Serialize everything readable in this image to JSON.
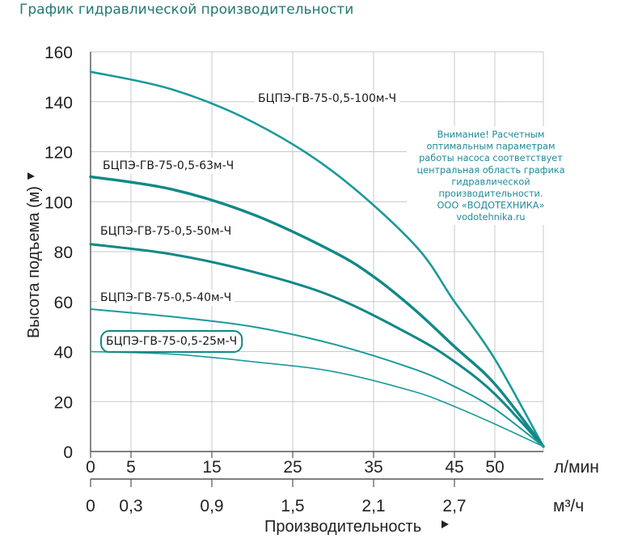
{
  "heading": "График гидравлической производительности",
  "chart_data": {
    "type": "line",
    "xlabel": "Производительность",
    "ylabel": "Высота подъема (м)",
    "x_unit": "л/мин",
    "x2_unit": "м³/ч",
    "xlim": [
      0,
      56
    ],
    "ylim": [
      0,
      160
    ],
    "x_ticks": [
      0,
      5,
      15,
      25,
      35,
      45,
      50
    ],
    "x2_ticks": [
      "0",
      "0,3",
      "0,9",
      "1,5",
      "2,1",
      "2,7"
    ],
    "x2_tick_positions": [
      0,
      5,
      15,
      25,
      35,
      45
    ],
    "y_ticks": [
      0,
      20,
      40,
      60,
      80,
      100,
      120,
      140,
      160
    ],
    "grid": true,
    "series": [
      {
        "name": "БЦПЭ-ГВ-75-0,5-100м-Ч",
        "x": [
          0,
          10,
          20,
          30,
          40,
          45,
          50,
          56
        ],
        "y": [
          152,
          145,
          132,
          112,
          83,
          60,
          37,
          2
        ]
      },
      {
        "name": "БЦПЭ-ГВ-75-0,5-63м-Ч",
        "x": [
          0,
          10,
          20,
          30,
          35,
          40,
          45,
          50,
          56
        ],
        "y": [
          110,
          105,
          95,
          80,
          70,
          57,
          42,
          27,
          2
        ]
      },
      {
        "name": "БЦПЭ-ГВ-75-0,5-50м-Ч",
        "x": [
          0,
          10,
          20,
          30,
          40,
          45,
          50,
          56
        ],
        "y": [
          83,
          79,
          72,
          62,
          46,
          36,
          23,
          2
        ]
      },
      {
        "name": "БЦПЭ-ГВ-75-0,5-40м-Ч",
        "x": [
          0,
          10,
          20,
          30,
          40,
          45,
          50,
          56
        ],
        "y": [
          57,
          54,
          50,
          43,
          33,
          26,
          17,
          2
        ]
      },
      {
        "name": "БЦПЭ-ГВ-75-0,5-25м-Ч",
        "x": [
          0,
          10,
          20,
          30,
          40,
          45,
          50,
          56
        ],
        "y": [
          40,
          39,
          36,
          32,
          24,
          18,
          11,
          2
        ]
      }
    ],
    "highlighted_series": "БЦПЭ-ГВ-75-0,5-25м-Ч",
    "annotation": [
      "Внимание! Расчетным",
      "оптимальным параметрам",
      "работы насоса соответствует",
      "центральная область графика",
      "гидравлической",
      "производительности.",
      "ООО «ВОДОТЕХНИКА»",
      "vodotehnika.ru"
    ],
    "colors": {
      "curve": "#1b9a9a",
      "curve_dark": "#118888",
      "grid": "#c8c8c8",
      "axis": "#555555",
      "note": "#1f8a9a",
      "heading": "#1f7a72"
    }
  }
}
